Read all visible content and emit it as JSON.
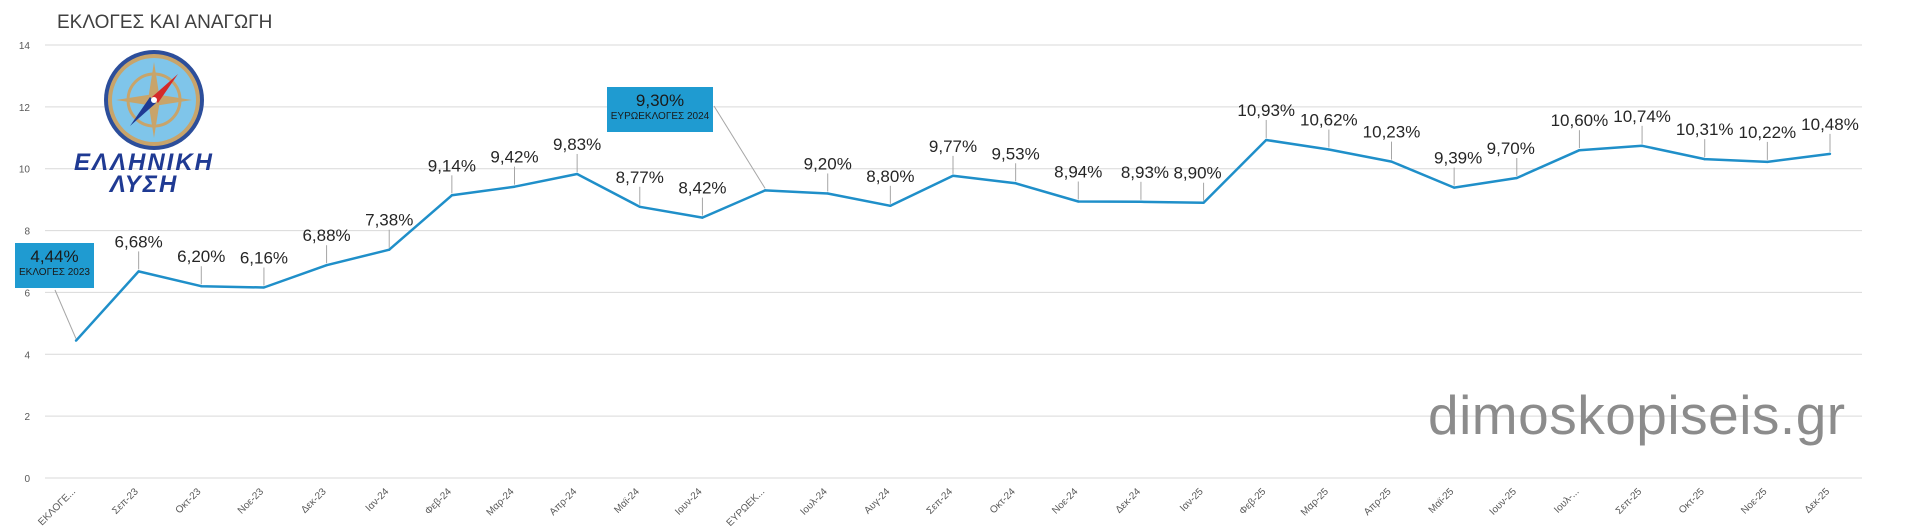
{
  "title": "ΕΚΛΟΓΕΣ ΚΑΙ ΑΝΑΓΩΓΗ",
  "watermark": "dimoskopiseis.gr",
  "logo": {
    "line1": "ΕΛΛΗΝΙΚΗ",
    "line2": "ΛΥΣΗ"
  },
  "colors": {
    "line": "#1f8fc9",
    "callout": "#1f9bd1",
    "grid": "#d9d9d9",
    "logo_text": "#1f3a93"
  },
  "callouts": [
    {
      "value": "4,44%",
      "label": "ΕΚΛΟΓΕΣ 2023"
    },
    {
      "value": "9,30%",
      "label": "ΕΥΡΩΕΚΛΟΓΕΣ 2024"
    }
  ],
  "chart_data": {
    "type": "line",
    "title": "ΕΚΛΟΓΕΣ ΚΑΙ ΑΝΑΓΩΓΗ",
    "ylim": [
      0,
      14
    ],
    "yticks": [
      0,
      2,
      4,
      6,
      8,
      10,
      12,
      14
    ],
    "grid": true,
    "categories": [
      "ΕΚΛΟΓΕ...",
      "Σεπ-23",
      "Οκτ-23",
      "Νοε-23",
      "Δεκ-23",
      "Ιαν-24",
      "Φεβ-24",
      "Μαρ-24",
      "Απρ-24",
      "Μαϊ-24",
      "Ιουν-24",
      "ΕΥΡΩΕΚ...",
      "Ιουλ-24",
      "Αυγ-24",
      "Σεπ-24",
      "Οκτ-24",
      "Νοε-24",
      "Δεκ-24",
      "Ιαν-25",
      "Φεβ-25",
      "Μαρ-25",
      "Απρ-25",
      "Μαϊ-25",
      "Ιουν-25",
      "Ιουλ-...",
      "Σεπ-25",
      "Οκτ-25",
      "Νοε-25",
      "Δεκ-25"
    ],
    "values": [
      4.44,
      6.68,
      6.2,
      6.16,
      6.88,
      7.38,
      9.14,
      9.42,
      9.83,
      8.77,
      8.42,
      9.3,
      9.2,
      8.8,
      9.77,
      9.53,
      8.94,
      8.93,
      8.9,
      10.93,
      10.62,
      10.23,
      9.39,
      9.7,
      10.6,
      10.74,
      10.31,
      10.22,
      10.48
    ],
    "labels": [
      "4,44%",
      "6,68%",
      "6,20%",
      "6,16%",
      "6,88%",
      "7,38%",
      "9,14%",
      "9,42%",
      "9,83%",
      "8,77%",
      "8,42%",
      "9,30%",
      "9,20%",
      "8,80%",
      "9,77%",
      "9,53%",
      "8,94%",
      "8,93%",
      "8,90%",
      "10,93%",
      "10,62%",
      "10,23%",
      "9,39%",
      "9,70%",
      "10,60%",
      "10,74%",
      "10,31%",
      "10,22%",
      "10,48%"
    ]
  }
}
